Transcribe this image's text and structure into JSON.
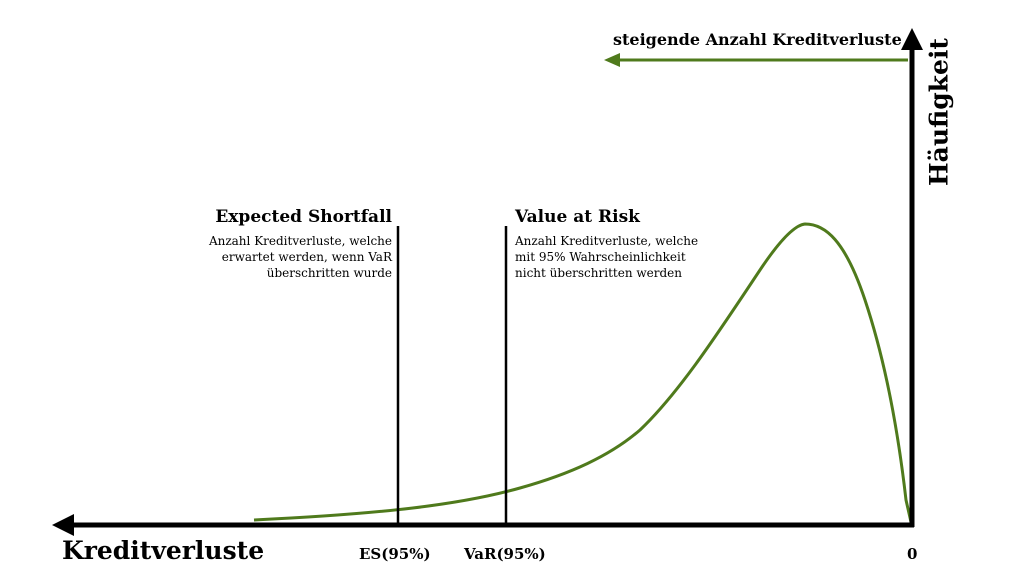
{
  "diagram": {
    "x_axis_title": "Kreditverluste",
    "y_axis_title": "Häufigkeit",
    "direction_label": "steigende Anzahl Kreditverluste",
    "expected_shortfall": {
      "title": "Expected Shortfall",
      "description": [
        "Anzahl Kreditverluste, welche",
        "erwartet werden, wenn VaR",
        "überschritten wurde"
      ],
      "tick_label": "ES(95%)"
    },
    "value_at_risk": {
      "title": "Value at Risk",
      "description": [
        "Anzahl Kreditverluste, welche",
        "mit 95% Wahrscheinlichkeit",
        "nicht überschritten werden"
      ],
      "tick_label": "VaR(95%)"
    },
    "origin_label": "0"
  },
  "colors": {
    "curve": "#4f7a1c",
    "axes": "#000000",
    "direction_arrow": "#4f7a1c"
  }
}
